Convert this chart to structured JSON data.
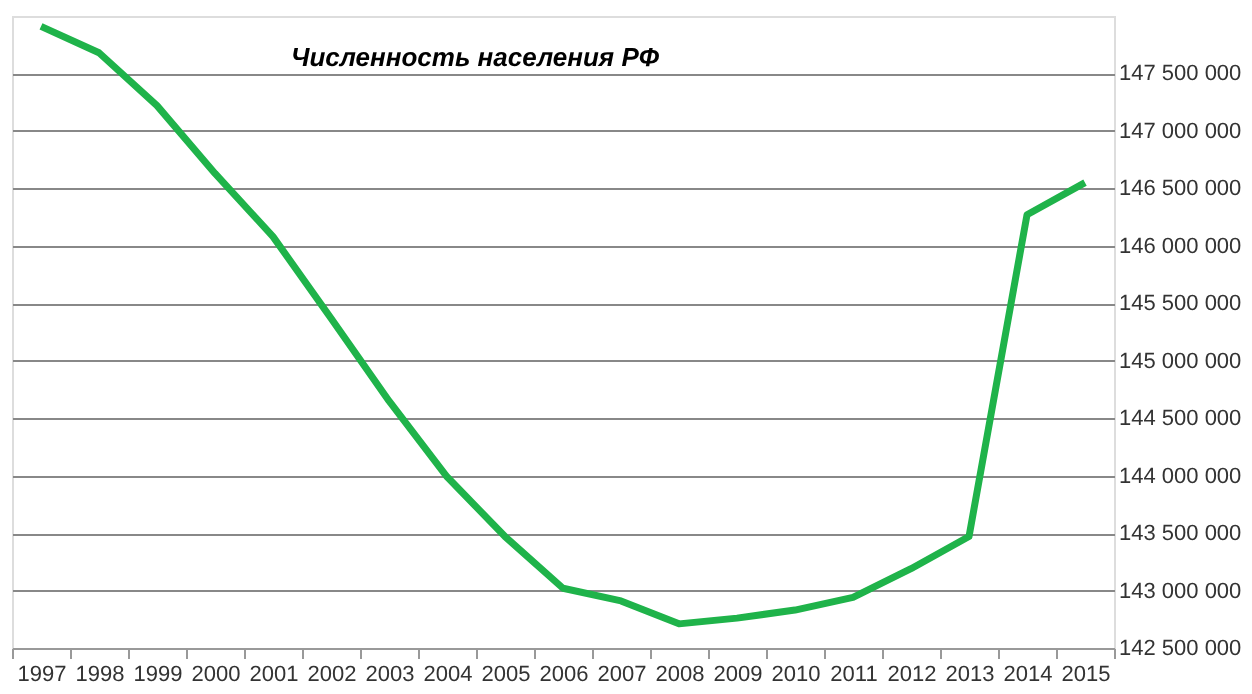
{
  "chart_data": {
    "type": "line",
    "title": "Численность населения РФ",
    "categories": [
      "1997",
      "1998",
      "1999",
      "2000",
      "2001",
      "2002",
      "2003",
      "2004",
      "2005",
      "2006",
      "2007",
      "2008",
      "2009",
      "2010",
      "2011",
      "2012",
      "2013",
      "2014",
      "2015"
    ],
    "series": [
      {
        "color": "#1fb34a",
        "values": [
          147910000,
          147680000,
          147220000,
          146630000,
          146080000,
          145370000,
          144650000,
          143990000,
          143470000,
          143020000,
          142910000,
          142710000,
          142760000,
          142830000,
          142940000,
          143190000,
          143470000,
          146270000,
          146550000
        ]
      }
    ],
    "ylim": [
      142500000,
      148000000
    ],
    "yticks": [
      142500000,
      143000000,
      143500000,
      144000000,
      144500000,
      145000000,
      145500000,
      146000000,
      146500000,
      147000000,
      147500000
    ],
    "grid": "y",
    "legend": false,
    "marker": "none",
    "line_style": "solid"
  }
}
